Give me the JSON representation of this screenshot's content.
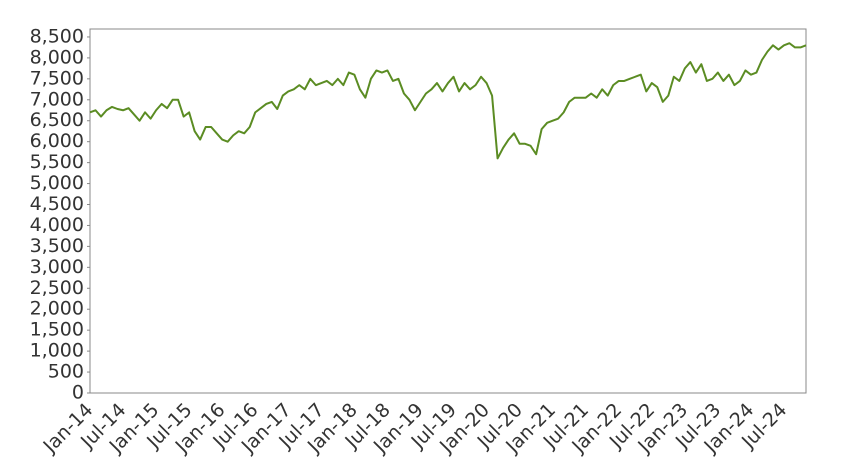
{
  "chart_data": {
    "type": "line",
    "categories": [
      "Jan-14",
      null,
      null,
      null,
      null,
      null,
      "Jul-14",
      null,
      null,
      null,
      null,
      null,
      "Jan-15",
      null,
      null,
      null,
      null,
      null,
      "Jul-15",
      null,
      null,
      null,
      null,
      null,
      "Jan-16",
      null,
      null,
      null,
      null,
      null,
      "Jul-16",
      null,
      null,
      null,
      null,
      null,
      "Jan-17",
      null,
      null,
      null,
      null,
      null,
      "Jul-17",
      null,
      null,
      null,
      null,
      null,
      "Jan-18",
      null,
      null,
      null,
      null,
      null,
      "Jul-18",
      null,
      null,
      null,
      null,
      null,
      "Jan-19",
      null,
      null,
      null,
      null,
      null,
      "Jul-19",
      null,
      null,
      null,
      null,
      null,
      "Jan-20",
      null,
      null,
      null,
      null,
      null,
      "Jul-20",
      null,
      null,
      null,
      null,
      null,
      "Jan-21",
      null,
      null,
      null,
      null,
      null,
      "Jul-21",
      null,
      null,
      null,
      null,
      null,
      "Jan-22",
      null,
      null,
      null,
      null,
      null,
      "Jul-22",
      null,
      null,
      null,
      null,
      null,
      "Jan-23",
      null,
      null,
      null,
      null,
      null,
      "Jul-23",
      null,
      null,
      null,
      null,
      null,
      "Jan-24",
      null,
      null,
      null,
      null,
      null,
      "Jul-24",
      null,
      null,
      null,
      null
    ],
    "values": [
      6700,
      6750,
      6600,
      6750,
      6830,
      6780,
      6750,
      6800,
      6650,
      6500,
      6700,
      6550,
      6750,
      6900,
      6800,
      7000,
      7000,
      6600,
      6700,
      6250,
      6050,
      6350,
      6350,
      6200,
      6050,
      6000,
      6150,
      6250,
      6200,
      6350,
      6700,
      6800,
      6900,
      6950,
      6780,
      7100,
      7200,
      7250,
      7350,
      7250,
      7500,
      7350,
      7400,
      7450,
      7350,
      7500,
      7350,
      7650,
      7600,
      7250,
      7050,
      7500,
      7700,
      7650,
      7700,
      7450,
      7500,
      7150,
      7000,
      6750,
      6950,
      7150,
      7250,
      7400,
      7200,
      7400,
      7550,
      7200,
      7400,
      7250,
      7350,
      7550,
      7400,
      7100,
      5600,
      5850,
      6050,
      6200,
      5950,
      5950,
      5900,
      5700,
      6300,
      6450,
      6500,
      6550,
      6700,
      6950,
      7050,
      7050,
      7050,
      7150,
      7050,
      7250,
      7100,
      7350,
      7450,
      7450,
      7500,
      7550,
      7600,
      7200,
      7400,
      7300,
      6950,
      7100,
      7550,
      7450,
      7750,
      7900,
      7650,
      7850,
      7450,
      7500,
      7650,
      7450,
      7600,
      7350,
      7450,
      7700,
      7600,
      7650,
      7950,
      8150,
      8300,
      8200,
      8300,
      8350,
      8250,
      8250,
      8300
    ],
    "color": "#5b8c23",
    "ylim": [
      0,
      8690
    ],
    "yticks": [
      0,
      500,
      {
        "value": 1000,
        "label": "1,000"
      },
      {
        "value": 1500,
        "label": "1,500"
      },
      {
        "value": 2000,
        "label": "2,000"
      },
      {
        "value": 2500,
        "label": "2,500"
      },
      {
        "value": 3000,
        "label": "3,000"
      },
      {
        "value": 3500,
        "label": "3,500"
      },
      {
        "value": 4000,
        "label": "4,000"
      },
      {
        "value": 4500,
        "label": "4,500"
      },
      {
        "value": 5000,
        "label": "5,000"
      },
      {
        "value": 5500,
        "label": "5,500"
      },
      {
        "value": 6000,
        "label": "6,000"
      },
      {
        "value": 6500,
        "label": "6,500"
      },
      {
        "value": 7000,
        "label": "7,000"
      },
      {
        "value": 7500,
        "label": "7,500"
      },
      {
        "value": 8000,
        "label": "8,000"
      },
      {
        "value": 8500,
        "label": "8,500"
      }
    ],
    "grid": false
  }
}
